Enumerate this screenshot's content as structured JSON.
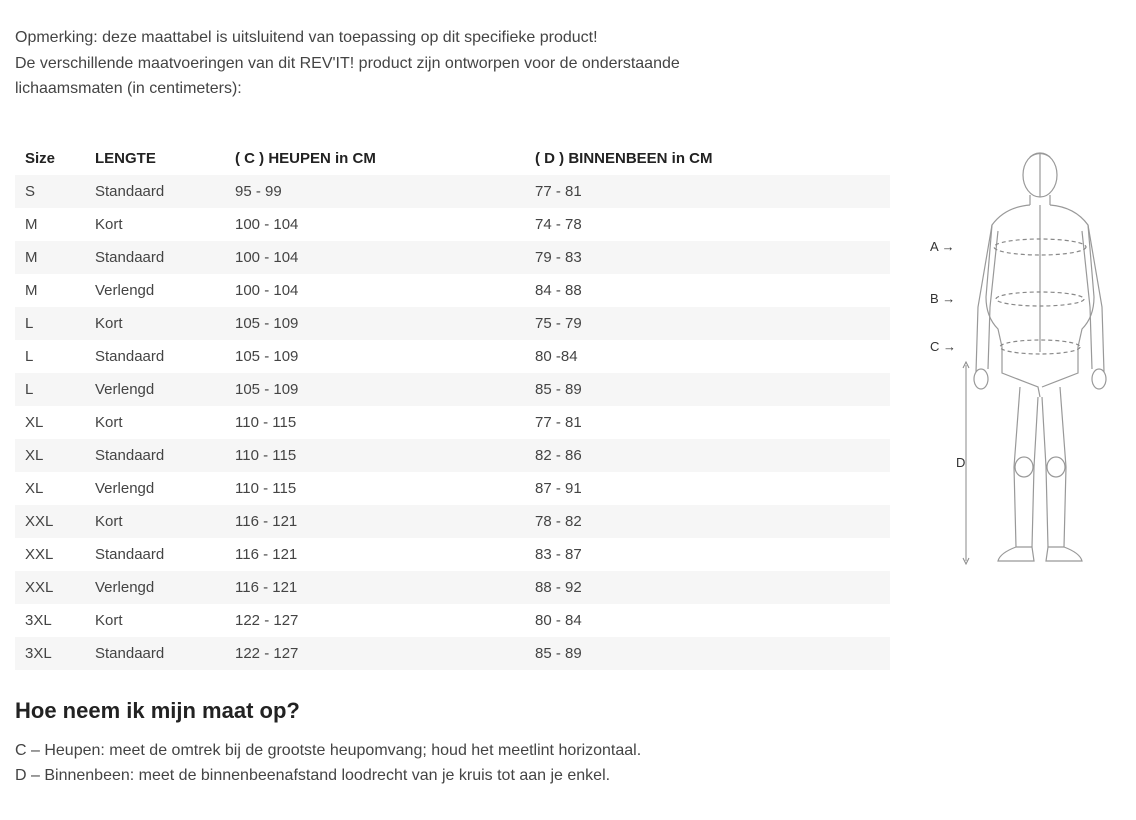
{
  "intro": {
    "line1": "Opmerking: deze maattabel is uitsluitend van toepassing op dit specifieke product!",
    "line2": "De verschillende maatvoeringen van dit REV'IT! product zijn ontworpen voor de onderstaande",
    "line3": "lichaamsmaten (in centimeters):"
  },
  "table": {
    "columns": [
      "Size",
      "LENGTE",
      "( C ) HEUPEN in CM",
      "( D ) BINNENBEEN in CM"
    ],
    "rows": [
      [
        "S",
        "Standaard",
        "95 - 99",
        "77 - 81"
      ],
      [
        "M",
        "Kort",
        "100 - 104",
        "74 - 78"
      ],
      [
        "M",
        "Standaard",
        "100 - 104",
        "79 - 83"
      ],
      [
        "M",
        "Verlengd",
        "100 - 104",
        "84 - 88"
      ],
      [
        "L",
        "Kort",
        "105 - 109",
        "75 - 79"
      ],
      [
        "L",
        "Standaard",
        "105 - 109",
        "80 -84"
      ],
      [
        "L",
        "Verlengd",
        "105 - 109",
        "85 - 89"
      ],
      [
        "XL",
        "Kort",
        "110 - 115",
        "77 - 81"
      ],
      [
        "XL",
        "Standaard",
        "110 - 115",
        "82 - 86"
      ],
      [
        "XL",
        "Verlengd",
        "110 - 115",
        "87 - 91"
      ],
      [
        "XXL",
        "Kort",
        "116 - 121",
        "78 - 82"
      ],
      [
        "XXL",
        "Standaard",
        "116 - 121",
        "83 - 87"
      ],
      [
        "XXL",
        "Verlengd",
        "116 - 121",
        "88 - 92"
      ],
      [
        "3XL",
        "Kort",
        "122 - 127",
        "80 - 84"
      ],
      [
        "3XL",
        "Standaard",
        "122 - 127",
        "85 - 89"
      ]
    ],
    "row_bg_odd": "#f6f6f6",
    "row_bg_even": "#ffffff",
    "header_bg": "#ffffff",
    "font_size": 15
  },
  "figure": {
    "labels": {
      "a": "A",
      "b": "B",
      "c": "C",
      "d": "D"
    },
    "arrow_glyph": "→",
    "line_color": "#999999",
    "dash_color": "#888888"
  },
  "measure": {
    "title": "Hoe neem ik mijn maat op?",
    "line_c": "C – Heupen: meet de omtrek bij de grootste heupomvang; houd het meetlint horizontaal.",
    "line_d": "D – Binnenbeen: meet de binnenbeenafstand loodrecht van je kruis tot aan je enkel."
  }
}
